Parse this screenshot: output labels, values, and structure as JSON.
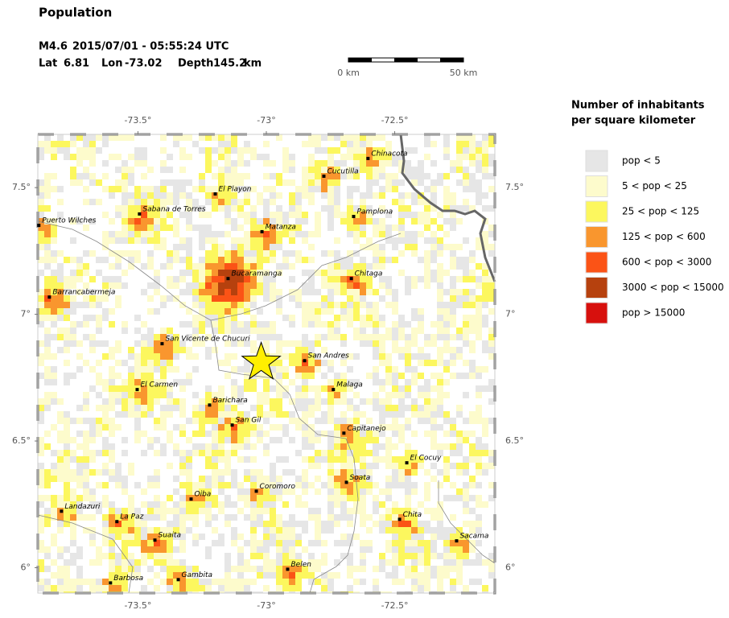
{
  "title": "Population",
  "event": {
    "magnitude": "M4.6",
    "time": "2015/07/01 - 05:55:24 UTC",
    "lat_label": "Lat",
    "lat": 6.81,
    "lon_label": "Lon",
    "lon": -73.02,
    "depth_label": "Depth",
    "depth": 145.2,
    "depth_unit": "km"
  },
  "scale_bar": {
    "labels": [
      "0 km",
      "50 km"
    ]
  },
  "map": {
    "lonlim": [
      -73.89,
      -72.11
    ],
    "latlim": [
      5.9,
      7.71
    ],
    "lonticks": [
      {
        "value": -73.5,
        "label": "-73.5°"
      },
      {
        "value": -73,
        "label": "-73°"
      },
      {
        "value": -72.5,
        "label": "-72.5°"
      }
    ],
    "latticks": [
      {
        "value": 6,
        "label": "6°"
      },
      {
        "value": 6.5,
        "label": "6.5°"
      },
      {
        "value": 7,
        "label": "7°"
      },
      {
        "value": 7.5,
        "label": "7.5°"
      }
    ],
    "cities": [
      {
        "name": "Chinacota",
        "lon": -72.604,
        "lat": 7.615
      },
      {
        "name": "Cucutilla",
        "lon": -72.776,
        "lat": 7.545
      },
      {
        "name": "El Playon",
        "lon": -73.199,
        "lat": 7.475
      },
      {
        "name": "Sabana de Torres",
        "lon": -73.494,
        "lat": 7.396
      },
      {
        "name": "Pamplona",
        "lon": -72.66,
        "lat": 7.386
      },
      {
        "name": "Puerto Wilches",
        "lon": -73.886,
        "lat": 7.351
      },
      {
        "name": "Matanza",
        "lon": -73.017,
        "lat": 7.326
      },
      {
        "name": "Bucaramanga",
        "lon": -73.149,
        "lat": 7.141
      },
      {
        "name": "Chitaga",
        "lon": -72.669,
        "lat": 7.141
      },
      {
        "name": "Barrancabermeja",
        "lon": -73.845,
        "lat": 7.068
      },
      {
        "name": "San Vicente de Chucuri",
        "lon": -73.406,
        "lat": 6.884
      },
      {
        "name": "San Andres",
        "lon": -72.851,
        "lat": 6.817
      },
      {
        "name": "El Carmen",
        "lon": -73.503,
        "lat": 6.703
      },
      {
        "name": "Malaga",
        "lon": -72.739,
        "lat": 6.703
      },
      {
        "name": "Barichara",
        "lon": -73.221,
        "lat": 6.642
      },
      {
        "name": "San Gil",
        "lon": -73.133,
        "lat": 6.563
      },
      {
        "name": "Capitanejo",
        "lon": -72.698,
        "lat": 6.531
      },
      {
        "name": "El Cocuy",
        "lon": -72.453,
        "lat": 6.414
      },
      {
        "name": "Soata",
        "lon": -72.688,
        "lat": 6.337
      },
      {
        "name": "Coromoro",
        "lon": -73.039,
        "lat": 6.302
      },
      {
        "name": "Oiba",
        "lon": -73.293,
        "lat": 6.271
      },
      {
        "name": "Landazuri",
        "lon": -73.798,
        "lat": 6.223
      },
      {
        "name": "La Paz",
        "lon": -73.582,
        "lat": 6.182
      },
      {
        "name": "Chita",
        "lon": -72.481,
        "lat": 6.191
      },
      {
        "name": "Suaita",
        "lon": -73.434,
        "lat": 6.109
      },
      {
        "name": "Sacama",
        "lon": -72.259,
        "lat": 6.106
      },
      {
        "name": "Belen",
        "lon": -72.917,
        "lat": 5.994
      },
      {
        "name": "Barbosa",
        "lon": -73.607,
        "lat": 5.94
      },
      {
        "name": "Gambita",
        "lon": -73.343,
        "lat": 5.953
      }
    ]
  },
  "legend": {
    "title": [
      "Number of inhabitants",
      "per square kilometer"
    ],
    "items": [
      {
        "label": "pop < 5",
        "color": "#e6e6e6"
      },
      {
        "label": "5 < pop < 25",
        "color": "#fdfbcc"
      },
      {
        "label": "25 < pop < 125",
        "color": "#fcf75e"
      },
      {
        "label": "125 < pop < 600",
        "color": "#f9962e"
      },
      {
        "label": "600 < pop < 3000",
        "color": "#fb5316"
      },
      {
        "label": "3000 < pop < 15000",
        "color": "#b6410e"
      },
      {
        "label": "pop > 15000",
        "color": "#d7100d"
      }
    ]
  }
}
